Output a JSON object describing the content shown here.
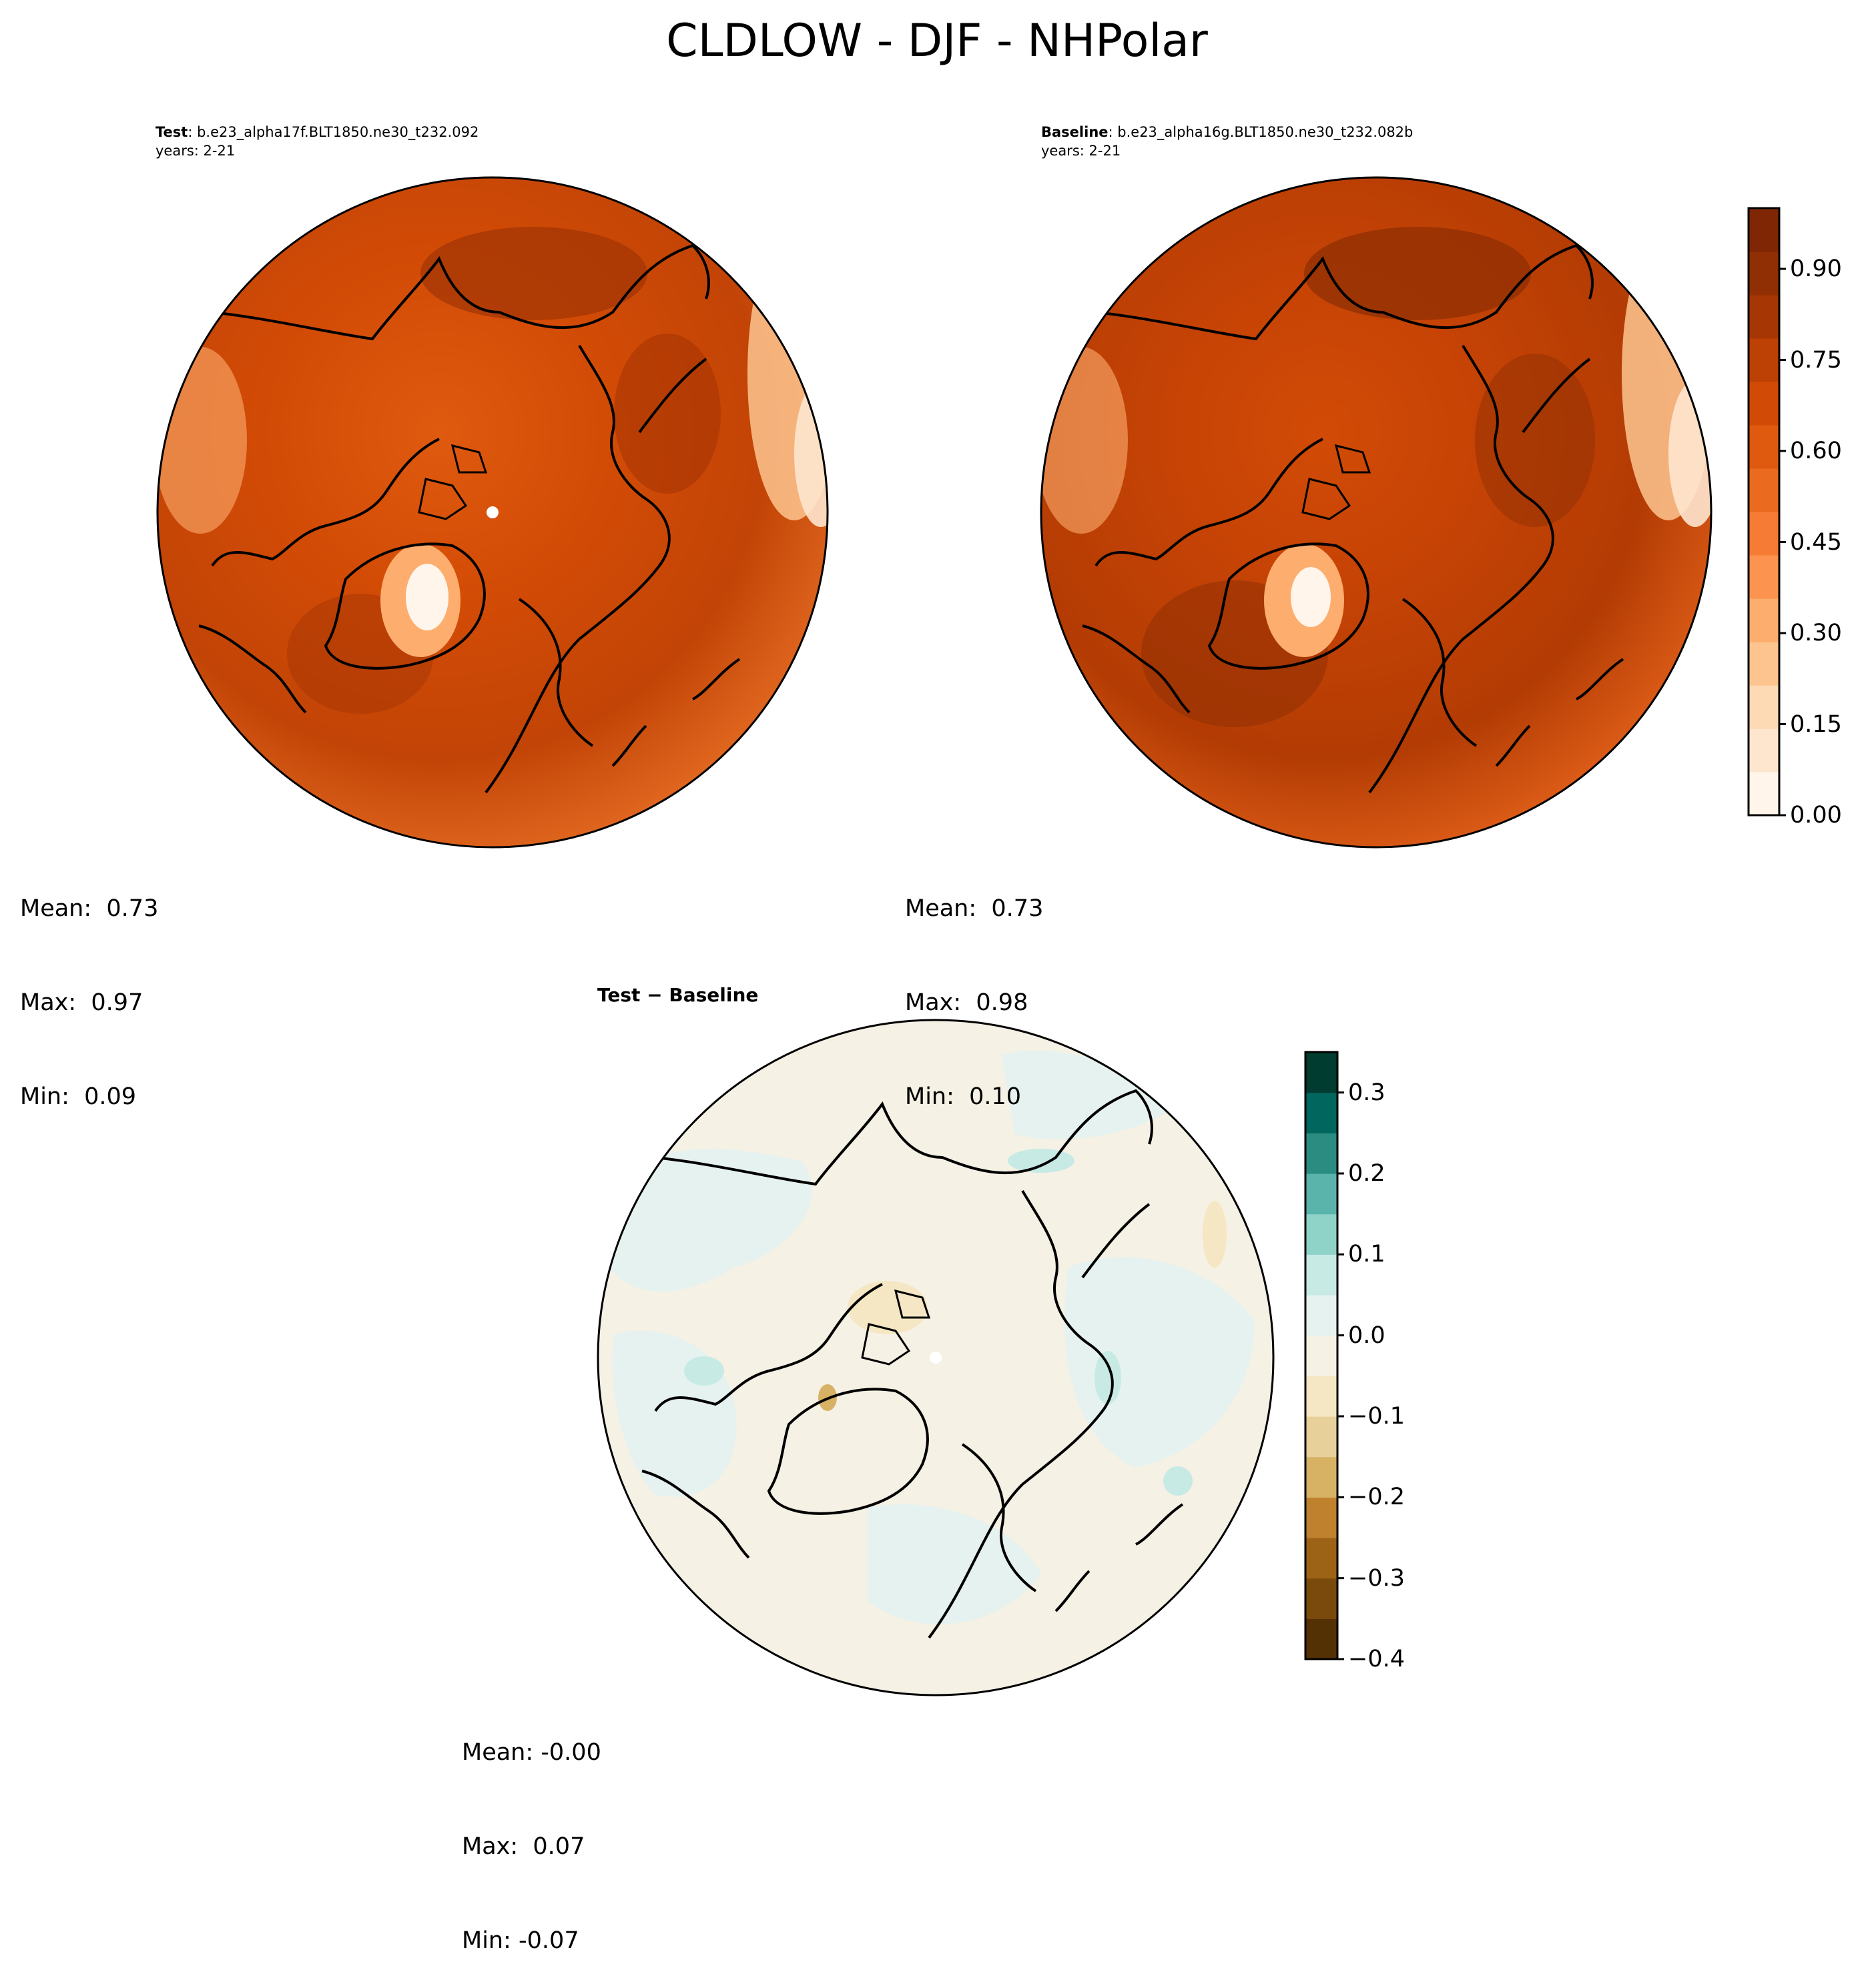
{
  "figure": {
    "title": "CLDLOW - DJF - NHPolar"
  },
  "panels": {
    "test": {
      "label": "Test",
      "case": ": b.e23_alpha17f.BLT1850.ne30_t232.092",
      "years": "years: 2-21",
      "mean": "Mean:  0.73",
      "max": "Max:  0.97",
      "min": "Min:  0.09"
    },
    "baseline": {
      "label": "Baseline",
      "case": ": b.e23_alpha16g.BLT1850.ne30_t232.082b",
      "years": "years: 2-21",
      "mean": "Mean:  0.73",
      "max": "Max:  0.98",
      "min": "Min:  0.10"
    },
    "diff": {
      "label": "Test − Baseline",
      "mean": "Mean: -0.00",
      "max": "Max:  0.07",
      "min": "Min: -0.07"
    }
  },
  "colors": {
    "field_scale": [
      "#fff5eb",
      "#fee6ce",
      "#fdd9b4",
      "#fdc48f",
      "#fdad6e",
      "#fc944f",
      "#f67c35",
      "#ea6a20",
      "#df5a0f",
      "#d24b06",
      "#bd4004",
      "#a63603",
      "#8f2f03",
      "#7f2704"
    ],
    "diff_scale": [
      "#543005",
      "#7a4a0c",
      "#9c6216",
      "#bf812d",
      "#d7b164",
      "#e8d09a",
      "#f5e7c4",
      "#f5f1e4",
      "#e6f2ef",
      "#c7eae5",
      "#8fd3c8",
      "#5ab4ac",
      "#2b8c82",
      "#01665e",
      "#003c30"
    ]
  },
  "chart_data": [
    {
      "type": "heatmap",
      "name": "test",
      "projection": "north-polar-stereographic",
      "title": "Test : b.e23_alpha17f.BLT1850.ne30_t232.092",
      "subtitle": "years: 2-21",
      "stats": {
        "mean": 0.73,
        "max": 0.97,
        "min": 0.09
      }
    },
    {
      "type": "heatmap",
      "name": "baseline",
      "projection": "north-polar-stereographic",
      "title": "Baseline : b.e23_alpha16g.BLT1850.ne30_t232.082b",
      "subtitle": "years: 2-21",
      "stats": {
        "mean": 0.73,
        "max": 0.98,
        "min": 0.1
      },
      "colorbar": {
        "range": [
          0.0,
          1.0
        ],
        "ticks": [
          0.0,
          0.15,
          0.3,
          0.45,
          0.6,
          0.75,
          0.9
        ],
        "tick_labels": [
          "0.00",
          "0.15",
          "0.30",
          "0.45",
          "0.60",
          "0.75",
          "0.90"
        ]
      }
    },
    {
      "type": "heatmap",
      "name": "diff",
      "projection": "north-polar-stereographic",
      "title": "Test − Baseline",
      "stats": {
        "mean": -0.0,
        "max": 0.07,
        "min": -0.07
      },
      "colorbar": {
        "range": [
          -0.4,
          0.35
        ],
        "ticks": [
          -0.4,
          -0.3,
          -0.2,
          -0.1,
          0.0,
          0.1,
          0.2,
          0.3
        ],
        "tick_labels": [
          "−0.4",
          "−0.3",
          "−0.2",
          "−0.1",
          "0.0",
          "0.1",
          "0.2",
          "0.3"
        ]
      }
    }
  ]
}
